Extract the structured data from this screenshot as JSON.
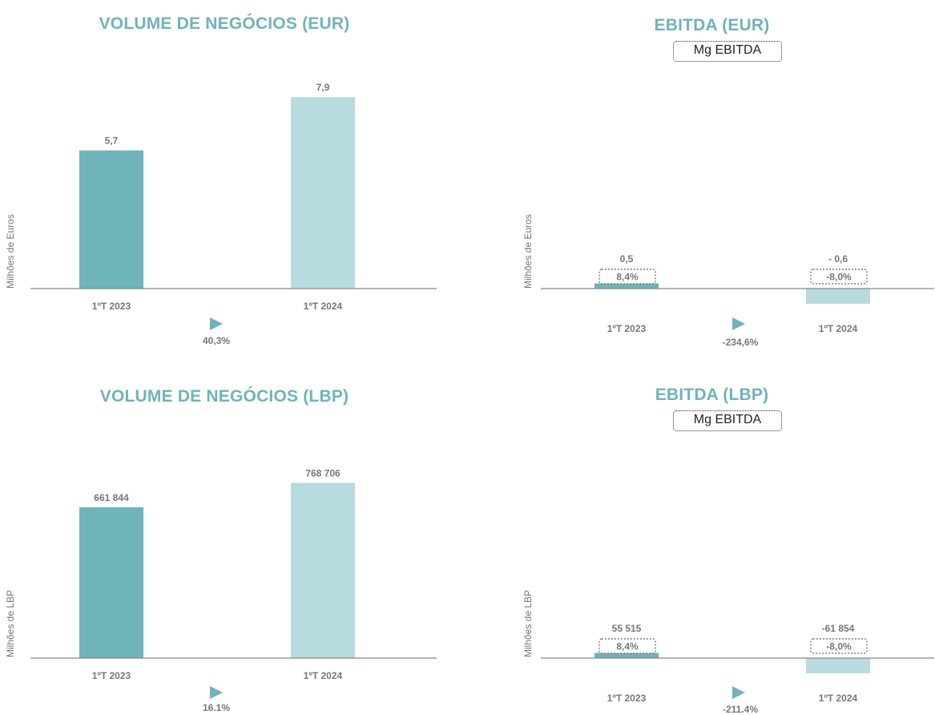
{
  "colors": {
    "bar_2023": "#6fb3bb",
    "bar_2024": "#b7dbdf",
    "title": "#6fb3bb",
    "text": "#777777",
    "axis": "#888888"
  },
  "chart_data": [
    {
      "type": "bar",
      "title": "VOLUME DE NEGÓCIOS (EUR)",
      "ylabel": "Milhões de Euros",
      "categories": [
        "1ºT 2023",
        "1ºT 2024"
      ],
      "values": [
        5.7,
        7.9
      ],
      "value_labels": [
        "5,7",
        "7,9"
      ],
      "ylim": [
        0,
        8.6
      ],
      "change": "40,3%"
    },
    {
      "type": "bar",
      "title": "EBITDA (EUR)",
      "legend": "Mg EBITDA",
      "ylabel": "Milhões de Euros",
      "categories": [
        "1ºT 2023",
        "1ºT 2024"
      ],
      "values": [
        0.5,
        -0.6
      ],
      "value_labels": [
        "0,5",
        "- 0,6"
      ],
      "margins": [
        "8,4%",
        "-8,0%"
      ],
      "ylim": [
        -1.5,
        20
      ],
      "change": "-234,6%"
    },
    {
      "type": "bar",
      "title": "VOLUME DE NEGÓCIOS (LBP)",
      "ylabel": "Milhões de LBP",
      "categories": [
        "1ºT 2023",
        "1ºT 2024"
      ],
      "values": [
        661844,
        768706
      ],
      "value_labels": [
        "661 844",
        "768 706"
      ],
      "ylim": [
        0,
        830000
      ],
      "change": "16.1%"
    },
    {
      "type": "bar",
      "title": "EBITDA (LBP)",
      "legend": "Mg EBITDA",
      "ylabel": "Milhões de LBP",
      "categories": [
        "1ºT 2023",
        "1ºT 2024"
      ],
      "values": [
        55515,
        -61854
      ],
      "value_labels": [
        "55 515",
        "-61 854"
      ],
      "margins": [
        "8,4%",
        "-8,0%"
      ],
      "ylim": [
        -170000,
        2000000
      ],
      "change": "-211.4%"
    }
  ]
}
